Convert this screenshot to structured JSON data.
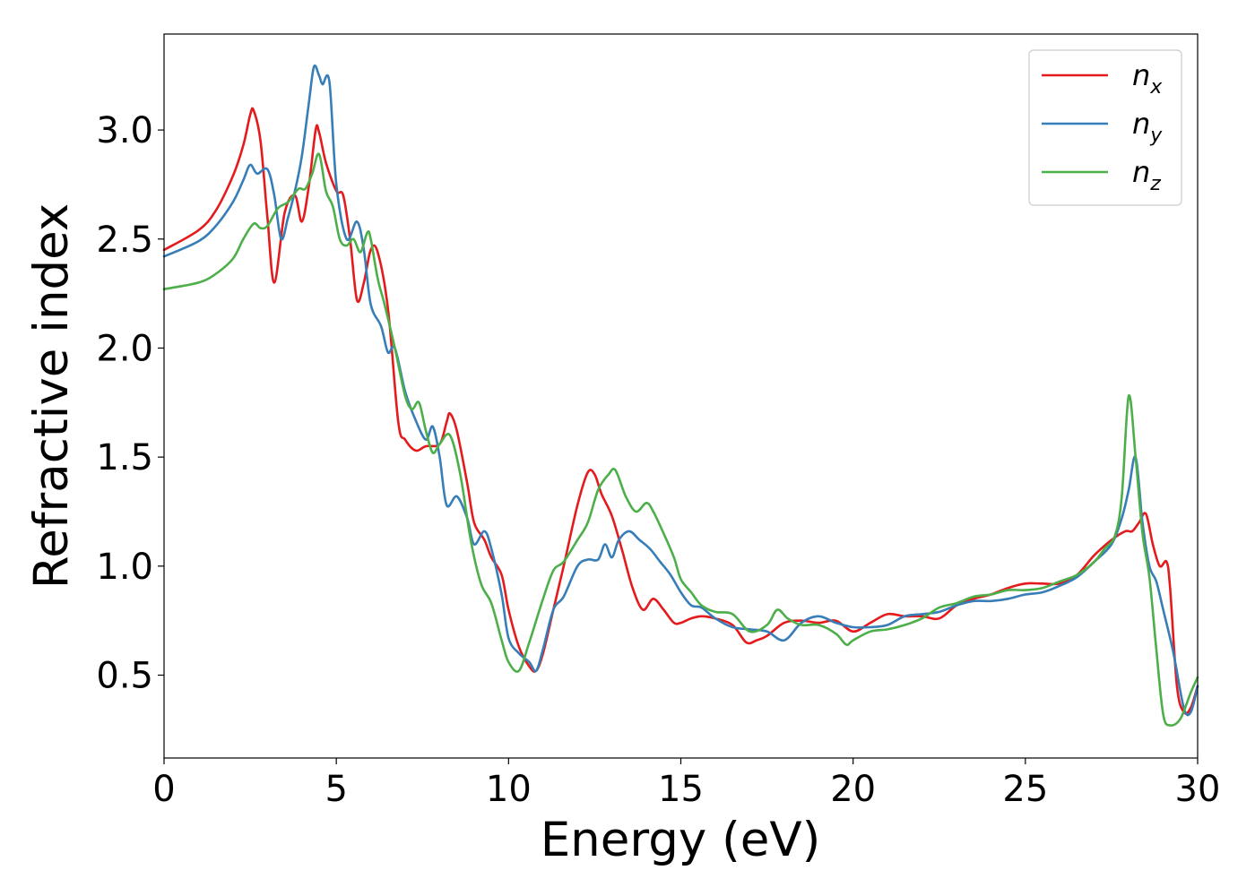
{
  "chart_data": {
    "type": "line",
    "title": "",
    "xlabel": "Energy (eV)",
    "ylabel": "Refractive index",
    "xlim": [
      0,
      30
    ],
    "ylim": [
      0.12,
      3.44
    ],
    "xticks": [
      0,
      5,
      10,
      15,
      20,
      25,
      30
    ],
    "xtick_labels": [
      "0",
      "5",
      "10",
      "15",
      "20",
      "25",
      "30"
    ],
    "yticks": [
      0.5,
      1.0,
      1.5,
      2.0,
      2.5,
      3.0
    ],
    "ytick_labels": [
      "0.5",
      "1.0",
      "1.5",
      "2.0",
      "2.5",
      "3.0"
    ],
    "grid": false,
    "legend_position": "top-right",
    "series": [
      {
        "name": "n_x",
        "name_main": "n",
        "name_sub": "x",
        "color": "#e41a1c",
        "x": [
          0,
          1,
          1.5,
          2,
          2.3,
          2.5,
          2.6,
          2.8,
          3.0,
          3.2,
          3.5,
          3.8,
          4.0,
          4.2,
          4.4,
          4.5,
          4.7,
          5.0,
          5.2,
          5.4,
          5.6,
          5.8,
          6.0,
          6.2,
          6.5,
          6.8,
          7.0,
          7.3,
          7.6,
          8.0,
          8.2,
          8.3,
          8.5,
          8.8,
          9.0,
          9.3,
          9.5,
          9.8,
          10.0,
          10.3,
          10.6,
          10.8,
          11.0,
          11.3,
          11.6,
          12.0,
          12.3,
          12.5,
          12.7,
          13.0,
          13.3,
          13.6,
          13.9,
          14.2,
          14.5,
          14.8,
          15.0,
          15.3,
          15.6,
          16.0,
          16.5,
          16.9,
          17.2,
          17.5,
          18.0,
          18.5,
          19.0,
          19.5,
          20.0,
          20.5,
          21.0,
          21.5,
          22.0,
          22.5,
          23.0,
          23.5,
          24.0,
          24.5,
          25.0,
          25.5,
          26.0,
          26.5,
          27.0,
          27.5,
          27.9,
          28.1,
          28.3,
          28.5,
          28.7,
          28.9,
          29.1,
          29.2,
          29.4,
          29.6,
          29.8,
          30.0
        ],
        "y": [
          2.45,
          2.54,
          2.63,
          2.79,
          2.93,
          3.07,
          3.09,
          2.95,
          2.6,
          2.3,
          2.62,
          2.7,
          2.58,
          2.74,
          3.0,
          2.99,
          2.85,
          2.72,
          2.7,
          2.5,
          2.22,
          2.3,
          2.45,
          2.44,
          2.18,
          1.66,
          1.58,
          1.53,
          1.55,
          1.56,
          1.66,
          1.7,
          1.62,
          1.38,
          1.2,
          1.12,
          1.04,
          0.96,
          0.8,
          0.63,
          0.54,
          0.52,
          0.6,
          0.8,
          1.0,
          1.28,
          1.43,
          1.42,
          1.33,
          1.23,
          1.07,
          0.9,
          0.8,
          0.85,
          0.8,
          0.74,
          0.74,
          0.76,
          0.77,
          0.76,
          0.73,
          0.65,
          0.66,
          0.68,
          0.74,
          0.75,
          0.74,
          0.75,
          0.7,
          0.74,
          0.78,
          0.77,
          0.77,
          0.76,
          0.82,
          0.85,
          0.87,
          0.9,
          0.92,
          0.92,
          0.92,
          0.96,
          1.05,
          1.12,
          1.16,
          1.16,
          1.2,
          1.24,
          1.1,
          1.0,
          1.02,
          0.9,
          0.45,
          0.33,
          0.35,
          0.45
        ]
      },
      {
        "name": "n_y",
        "name_main": "n",
        "name_sub": "y",
        "color": "#377eb8",
        "x": [
          0,
          1,
          1.5,
          2,
          2.3,
          2.5,
          2.7,
          3.0,
          3.2,
          3.4,
          3.6,
          3.8,
          4.0,
          4.2,
          4.35,
          4.5,
          4.6,
          4.8,
          5.0,
          5.3,
          5.6,
          5.8,
          6.0,
          6.3,
          6.5,
          6.7,
          7.0,
          7.3,
          7.6,
          7.8,
          8.0,
          8.2,
          8.5,
          8.8,
          9.0,
          9.3,
          9.5,
          9.8,
          10.0,
          10.3,
          10.6,
          10.8,
          11.0,
          11.3,
          11.6,
          12.0,
          12.3,
          12.6,
          12.8,
          13.0,
          13.2,
          13.5,
          13.8,
          14.1,
          14.4,
          14.7,
          15.0,
          15.3,
          15.6,
          16.0,
          16.5,
          17.0,
          17.5,
          18.0,
          18.5,
          19.0,
          19.5,
          20.0,
          20.5,
          21.0,
          21.5,
          22.0,
          22.5,
          23.0,
          23.5,
          24.0,
          24.5,
          25.0,
          25.5,
          26.0,
          26.5,
          27.0,
          27.5,
          27.8,
          28.0,
          28.2,
          28.4,
          28.6,
          28.8,
          29.0,
          29.3,
          29.6,
          29.8,
          30.0
        ],
        "y": [
          2.42,
          2.49,
          2.56,
          2.67,
          2.77,
          2.84,
          2.8,
          2.82,
          2.7,
          2.5,
          2.6,
          2.72,
          2.88,
          3.12,
          3.29,
          3.25,
          3.21,
          3.22,
          2.75,
          2.5,
          2.58,
          2.45,
          2.2,
          2.1,
          1.98,
          2.0,
          1.8,
          1.67,
          1.58,
          1.64,
          1.5,
          1.28,
          1.32,
          1.22,
          1.1,
          1.16,
          1.08,
          0.87,
          0.67,
          0.6,
          0.56,
          0.52,
          0.62,
          0.8,
          0.86,
          1.0,
          1.03,
          1.03,
          1.1,
          1.04,
          1.12,
          1.16,
          1.12,
          1.08,
          1.02,
          0.96,
          0.88,
          0.82,
          0.81,
          0.76,
          0.72,
          0.71,
          0.7,
          0.66,
          0.74,
          0.77,
          0.74,
          0.72,
          0.72,
          0.73,
          0.77,
          0.78,
          0.79,
          0.82,
          0.84,
          0.84,
          0.85,
          0.87,
          0.88,
          0.91,
          0.95,
          1.02,
          1.1,
          1.22,
          1.35,
          1.5,
          1.2,
          1.0,
          0.93,
          0.8,
          0.6,
          0.35,
          0.33,
          0.45
        ]
      },
      {
        "name": "n_z",
        "name_main": "n",
        "name_sub": "z",
        "color": "#4daf4a",
        "x": [
          0,
          1,
          1.5,
          2,
          2.3,
          2.6,
          2.8,
          3.0,
          3.3,
          3.6,
          3.9,
          4.1,
          4.3,
          4.5,
          4.7,
          4.9,
          5.1,
          5.3,
          5.5,
          5.7,
          5.9,
          6.0,
          6.2,
          6.4,
          6.7,
          7.0,
          7.2,
          7.4,
          7.6,
          7.8,
          8.0,
          8.3,
          8.6,
          8.9,
          9.2,
          9.5,
          9.8,
          10.0,
          10.3,
          10.6,
          11.0,
          11.3,
          11.6,
          12.0,
          12.3,
          12.6,
          12.9,
          13.1,
          13.4,
          13.7,
          14.0,
          14.2,
          14.5,
          14.8,
          15.0,
          15.3,
          15.6,
          16.0,
          16.5,
          17.0,
          17.5,
          17.8,
          18.1,
          18.5,
          19.0,
          19.5,
          19.8,
          20.0,
          20.5,
          21.0,
          21.5,
          22.0,
          22.5,
          23.0,
          23.5,
          24.0,
          24.5,
          25.0,
          25.5,
          26.0,
          26.5,
          27.0,
          27.3,
          27.6,
          27.8,
          28.0,
          28.2,
          28.4,
          28.6,
          28.8,
          29.0,
          29.2,
          29.5,
          29.8,
          30.0
        ],
        "y": [
          2.27,
          2.3,
          2.34,
          2.41,
          2.5,
          2.57,
          2.55,
          2.56,
          2.64,
          2.67,
          2.73,
          2.73,
          2.8,
          2.89,
          2.72,
          2.65,
          2.5,
          2.47,
          2.5,
          2.44,
          2.53,
          2.5,
          2.32,
          2.2,
          2.0,
          1.78,
          1.72,
          1.75,
          1.62,
          1.52,
          1.56,
          1.6,
          1.42,
          1.12,
          0.92,
          0.83,
          0.66,
          0.56,
          0.52,
          0.65,
          0.85,
          0.98,
          1.02,
          1.12,
          1.2,
          1.35,
          1.42,
          1.44,
          1.32,
          1.25,
          1.29,
          1.25,
          1.15,
          1.04,
          0.94,
          0.88,
          0.82,
          0.79,
          0.78,
          0.7,
          0.73,
          0.8,
          0.76,
          0.73,
          0.73,
          0.69,
          0.64,
          0.66,
          0.7,
          0.71,
          0.73,
          0.76,
          0.81,
          0.83,
          0.86,
          0.87,
          0.89,
          0.89,
          0.9,
          0.93,
          0.96,
          1.02,
          1.08,
          1.14,
          1.32,
          1.78,
          1.5,
          1.15,
          0.95,
          0.62,
          0.32,
          0.27,
          0.3,
          0.42,
          0.49
        ]
      }
    ]
  }
}
